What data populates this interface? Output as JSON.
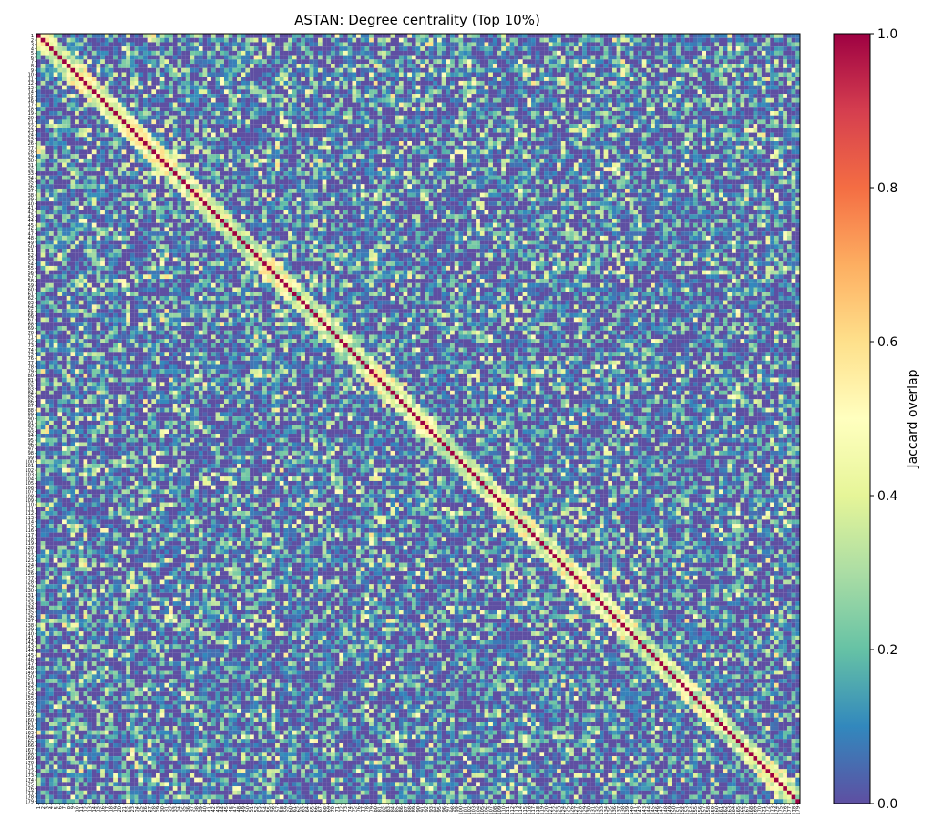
{
  "chart_data": {
    "type": "heatmap",
    "title": "ASTAN: Degree centrality (Top 10%)",
    "n": 179,
    "row_labels_start": 1,
    "row_labels_end": 179,
    "colorbar": {
      "label": "Jaccard overlap",
      "min": 0.0,
      "max": 1.0,
      "ticks": [
        0.0,
        0.2,
        0.4,
        0.6,
        0.8,
        1.0
      ],
      "tick_labels": [
        "0.0",
        "0.2",
        "0.4",
        "0.6",
        "0.8",
        "1.0"
      ],
      "colormap": "Spectral_r"
    },
    "diagonal_value": 1.0,
    "off_diagonal_range": [
      0.0,
      0.6
    ],
    "grid": false
  }
}
